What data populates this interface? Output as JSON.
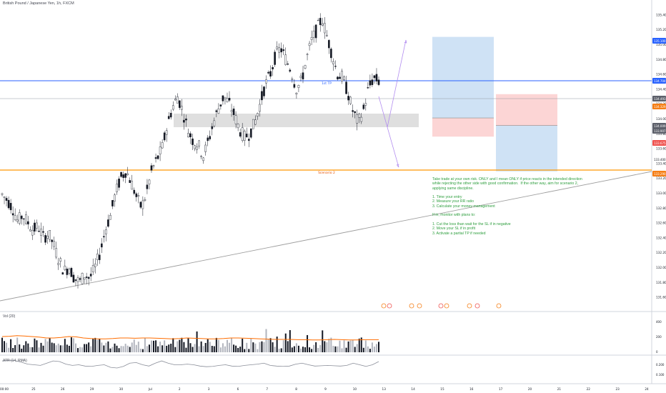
{
  "header": {
    "symbol_title": "British Pound / Japanese Yen, 1h, FXCM"
  },
  "panes": {
    "volume_label": "Vol (20)",
    "atr_label": "ATR (14, RMA)"
  },
  "annotation": {
    "text": "Take trade at your own risk. ONLY and I mean ONLY if price reacts in the intended direction while rejecting the other side with good confirmation.  If the other way, aim for scenario 2, applying same discipline.\n\n1. Time your entry\n2. Measure your RR ratio\n3. Calculate your money management\n\nIf in, monitor with plans to:\n\n1. Cut the loss than wait for the SL if in negative\n2. Move your SL if in profit\n3. Activate a partial TP if needed"
  },
  "colors": {
    "blue_line": "#2962ff",
    "orange_line": "#ff9800",
    "candle": "#131722",
    "long_zone": "#cfe2f5",
    "short_zone": "#fcd5d5",
    "zone_gray": "#d9d9d9",
    "projection": "#b38ef0",
    "note_text": "#2e9e3e",
    "orange_tag": "#f57f17",
    "current_tag": "#5d606b",
    "red_tag": "#ef5350"
  },
  "chart_data": {
    "type": "candlestick",
    "symbol": "British Pound / Japanese Yen",
    "interval": "1h",
    "ylim": [
      131.5,
      135.5
    ],
    "y_ticks": [
      "135.400",
      "135.200",
      "135.000",
      "134.800",
      "134.600",
      "134.400",
      "134.200",
      "134.000",
      "133.800",
      "133.600",
      "133.400",
      "133.200",
      "133.000",
      "132.800",
      "132.600",
      "132.400",
      "132.200",
      "132.000",
      "131.800",
      "131.600"
    ],
    "x_ticks": [
      "00:00",
      "25",
      "26",
      "29",
      "30",
      "Jul",
      "2",
      "3",
      "6",
      "7",
      "8",
      "9",
      "10",
      "13",
      "14",
      "15",
      "16",
      "17",
      "20",
      "21",
      "22",
      "23",
      "24"
    ],
    "price_tags": [
      {
        "text": "135.100",
        "kind": "long_tp"
      },
      {
        "text": "134.704",
        "kind": "blue_line"
      },
      {
        "text": "134.493",
        "kind": "current"
      },
      {
        "text": "134.329",
        "kind": "orange"
      },
      {
        "text": "134.009",
        "kind": "long_entry"
      },
      {
        "text": "133.907",
        "kind": "short_entry"
      },
      {
        "text": "133.675",
        "kind": "orange"
      },
      {
        "text": "133.400",
        "kind": "scale"
      },
      {
        "text": "133.290",
        "kind": "orange"
      }
    ],
    "levels": [
      {
        "label": "1st TP",
        "price": 134.704,
        "color": "#2962ff"
      },
      {
        "label": "Scenario 2",
        "price": 133.29,
        "color": "#ff9800"
      }
    ],
    "close_path": [
      132.98,
      132.9,
      132.8,
      132.62,
      132.7,
      132.6,
      132.5,
      132.55,
      132.4,
      132.45,
      132.3,
      132.1,
      131.95,
      132.0,
      131.85,
      131.8,
      131.9,
      131.85,
      132.0,
      132.2,
      132.5,
      132.7,
      133.0,
      133.2,
      133.3,
      133.15,
      132.95,
      132.8,
      133.0,
      133.3,
      133.45,
      133.6,
      133.9,
      134.15,
      134.3,
      134.1,
      133.85,
      133.7,
      133.65,
      133.5,
      133.7,
      133.95,
      134.15,
      134.3,
      134.2,
      134.05,
      133.85,
      133.75,
      133.8,
      133.95,
      134.2,
      134.45,
      134.6,
      134.85,
      134.95,
      134.8,
      134.65,
      134.4,
      134.5,
      134.8,
      135.05,
      135.2,
      135.35,
      135.1,
      134.85,
      134.6,
      134.55,
      134.35,
      134.1,
      133.95,
      134.1,
      134.4,
      134.55,
      134.5
    ],
    "volume_ma": [
      0.55,
      0.56,
      0.58,
      0.57,
      0.55,
      0.53,
      0.5,
      0.5,
      0.52,
      0.55,
      0.54,
      0.5,
      0.48,
      0.47,
      0.47,
      0.48,
      0.5,
      0.5,
      0.49,
      0.5,
      0.5,
      0.49,
      0.48,
      0.47,
      0.48,
      0.5,
      0.49,
      0.48,
      0.47,
      0.47,
      0.48,
      0.5,
      0.5,
      0.49,
      0.48,
      0.47,
      0.46,
      0.45,
      0.45,
      0.45,
      0.44,
      0.44,
      0.43,
      0.43,
      0.44,
      0.45,
      0.44,
      0.43,
      0.43,
      0.44,
      0.44,
      0.44
    ],
    "atr_path": [
      0.62,
      0.64,
      0.63,
      0.58,
      0.52,
      0.5,
      0.48,
      0.55,
      0.62,
      0.6,
      0.52,
      0.48,
      0.5,
      0.46,
      0.45,
      0.48,
      0.5,
      0.42,
      0.4,
      0.45,
      0.55,
      0.57,
      0.5,
      0.46,
      0.55,
      0.62,
      0.55,
      0.5,
      0.5,
      0.52,
      0.5,
      0.46,
      0.44,
      0.45,
      0.48,
      0.5,
      0.46,
      0.45,
      0.48,
      0.5,
      0.52,
      0.55,
      0.48,
      0.46,
      0.45,
      0.46,
      0.52,
      0.55,
      0.5,
      0.46,
      0.47,
      0.48,
      0.47,
      0.46,
      0.48,
      0.55,
      0.5,
      0.45,
      0.5,
      0.6
    ],
    "volume_axis": [
      "400",
      "200",
      "0"
    ],
    "atr_axis": [
      "0.200",
      "0.100"
    ],
    "positions": [
      {
        "kind": "long",
        "entry": 134.009,
        "target": 135.1,
        "stop": 133.7
      },
      {
        "kind": "short",
        "entry": 133.907,
        "target": 133.29,
        "stop": 134.329
      }
    ]
  }
}
